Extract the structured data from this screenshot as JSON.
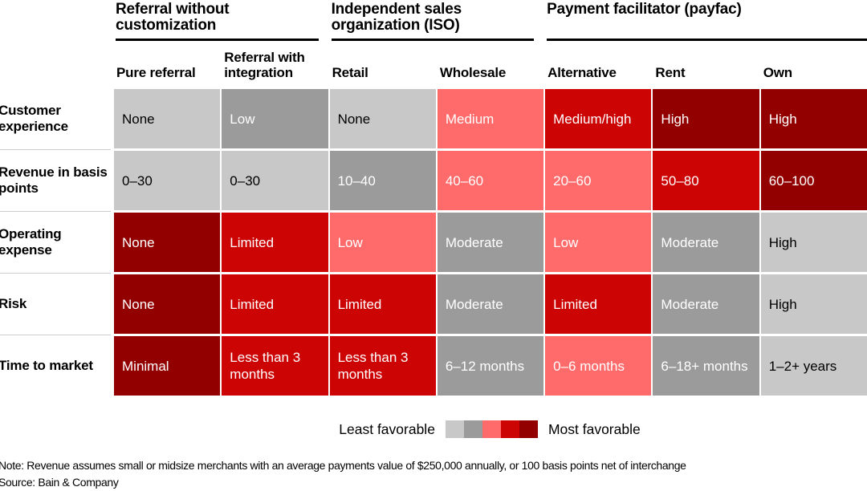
{
  "chart_data": {
    "type": "heatmap",
    "column_groups": [
      {
        "label": "Referral without customization",
        "span": 2
      },
      {
        "label": "Independent sales organization (ISO)",
        "span": 2
      },
      {
        "label": "Payment facilitator (payfac)",
        "span": 3
      }
    ],
    "columns": [
      "Pure referral",
      "Referral with integration",
      "Retail",
      "Wholesale",
      "Alternative",
      "Rent",
      "Own"
    ],
    "rows": [
      {
        "label": "Customer experience",
        "cells": [
          {
            "text": "None",
            "level": 1
          },
          {
            "text": "Low",
            "level": 2
          },
          {
            "text": "None",
            "level": 1
          },
          {
            "text": "Medium",
            "level": 3
          },
          {
            "text": "Medium/high",
            "level": 4
          },
          {
            "text": "High",
            "level": 5
          },
          {
            "text": "High",
            "level": 5
          }
        ]
      },
      {
        "label": "Revenue in basis points",
        "cells": [
          {
            "text": "0–30",
            "level": 1
          },
          {
            "text": "0–30",
            "level": 1
          },
          {
            "text": "10–40",
            "level": 2
          },
          {
            "text": "40–60",
            "level": 3
          },
          {
            "text": "20–60",
            "level": 3
          },
          {
            "text": "50–80",
            "level": 4
          },
          {
            "text": "60–100",
            "level": 5
          }
        ]
      },
      {
        "label": "Operating expense",
        "cells": [
          {
            "text": "None",
            "level": 5
          },
          {
            "text": "Limited",
            "level": 4
          },
          {
            "text": "Low",
            "level": 3
          },
          {
            "text": "Moderate",
            "level": 2
          },
          {
            "text": "Low",
            "level": 3
          },
          {
            "text": "Moderate",
            "level": 2
          },
          {
            "text": "High",
            "level": 1
          }
        ]
      },
      {
        "label": "Risk",
        "cells": [
          {
            "text": "None",
            "level": 5
          },
          {
            "text": "Limited",
            "level": 4
          },
          {
            "text": "Limited",
            "level": 4
          },
          {
            "text": "Moderate",
            "level": 2
          },
          {
            "text": "Limited",
            "level": 4
          },
          {
            "text": "Moderate",
            "level": 2
          },
          {
            "text": "High",
            "level": 1
          }
        ]
      },
      {
        "label": "Time to market",
        "cells": [
          {
            "text": "Minimal",
            "level": 5
          },
          {
            "text": "Less than 3 months",
            "level": 4
          },
          {
            "text": "Less than 3 months",
            "level": 4
          },
          {
            "text": "6–12 months",
            "level": 2
          },
          {
            "text": "0–6 months",
            "level": 3
          },
          {
            "text": "6–18+ months",
            "level": 2
          },
          {
            "text": "1–2+ years",
            "level": 1
          }
        ]
      }
    ],
    "scale": {
      "palette": [
        "#c8c8c8",
        "#9b9b9b",
        "#ff6b6b",
        "#cc0404",
        "#930000"
      ],
      "levels": "1 = least favorable … 5 = most favorable",
      "text_on_level1": "#000000",
      "text_on_levels_2_to_5": "#ffffff"
    },
    "legend": {
      "left_label": "Least favorable",
      "right_label": "Most favorable"
    }
  },
  "notes": {
    "note": "Note: Revenue assumes small or midsize merchants with an average payments value of $250,000 annually, or 100 basis points net of interchange",
    "source": "Source: Bain & Company"
  }
}
